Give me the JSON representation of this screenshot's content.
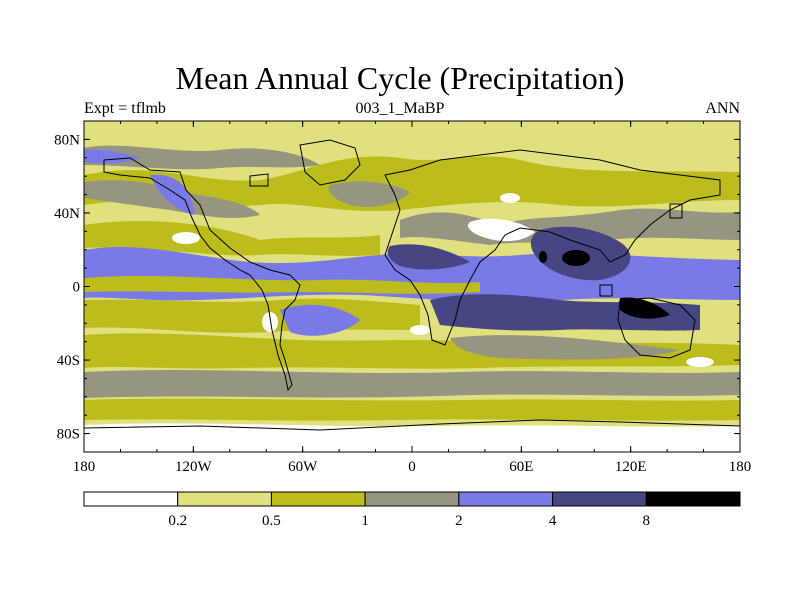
{
  "title": "Mean Annual Cycle (Precipitation)",
  "left_label": "Expt = tflmb",
  "center_label": "003_1_MaBP",
  "right_label": "ANN",
  "y_ticks": [
    {
      "lat": 80,
      "label": "80N"
    },
    {
      "lat": 40,
      "label": "40N"
    },
    {
      "lat": 0,
      "label": "0"
    },
    {
      "lat": -40,
      "label": "40S"
    },
    {
      "lat": -80,
      "label": "80S"
    }
  ],
  "x_ticks": [
    {
      "lon": -180,
      "label": "180"
    },
    {
      "lon": -120,
      "label": "120W"
    },
    {
      "lon": -60,
      "label": "60W"
    },
    {
      "lon": 0,
      "label": "0"
    },
    {
      "lon": 60,
      "label": "60E"
    },
    {
      "lon": 120,
      "label": "120E"
    },
    {
      "lon": 180,
      "label": "180"
    }
  ],
  "colorbar": {
    "levels": [
      "0.2",
      "0.5",
      "1",
      "2",
      "4",
      "8"
    ],
    "colors": [
      "#ffffff",
      "#e1e07e",
      "#bcbc1c",
      "#969680",
      "#7a7ae6",
      "#464682",
      "#000000"
    ]
  }
}
